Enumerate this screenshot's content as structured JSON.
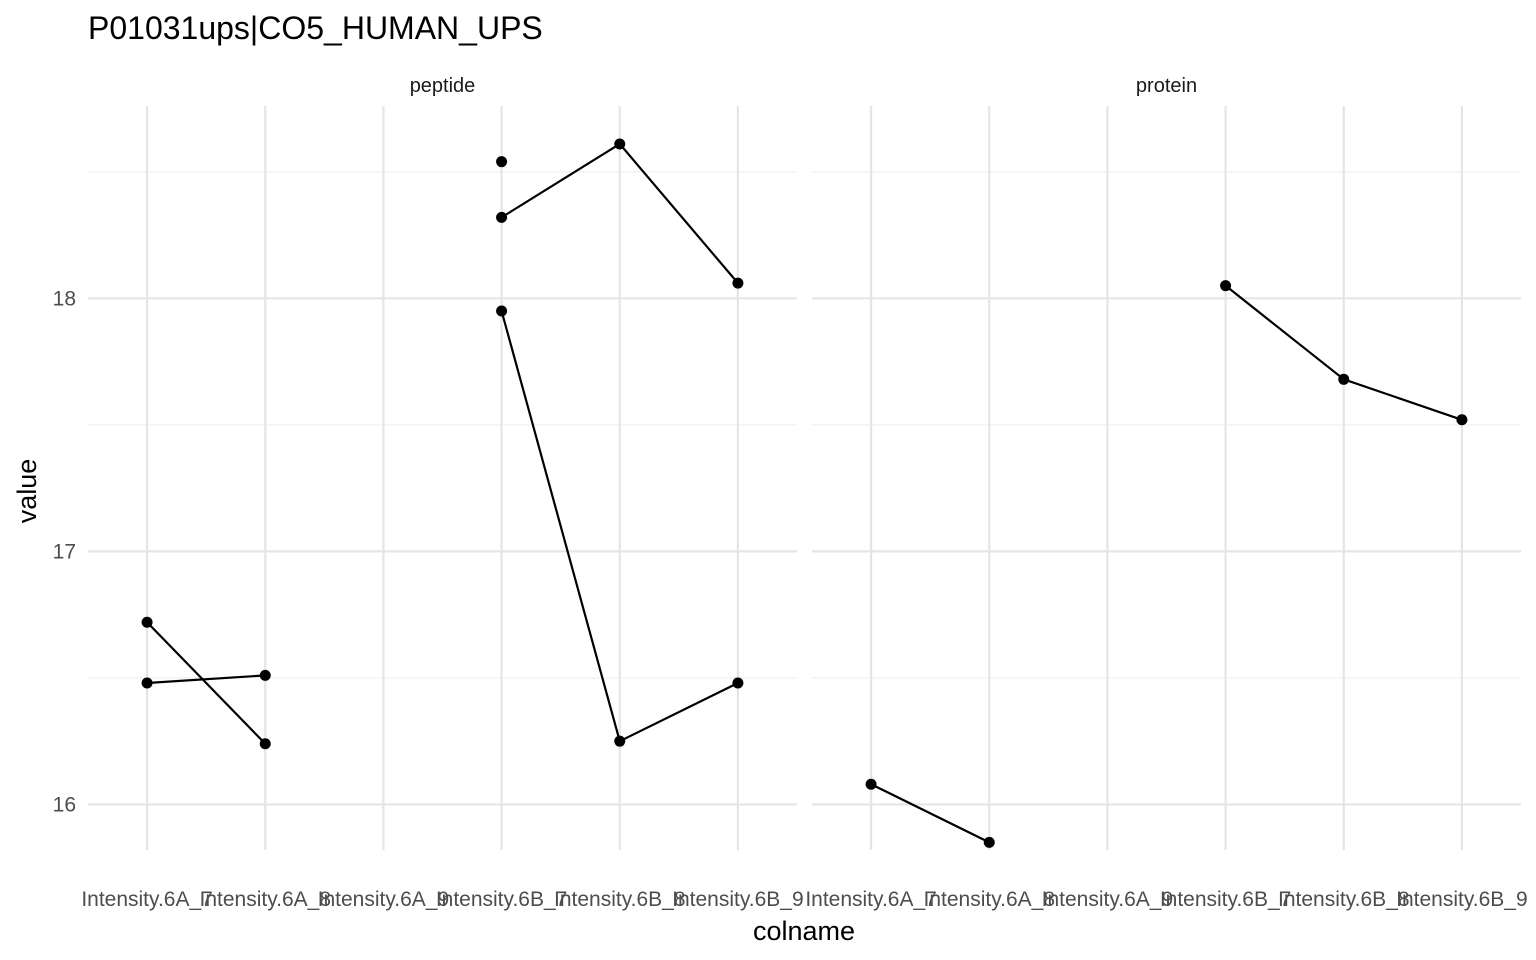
{
  "chart_data": {
    "type": "line",
    "title": "P01031ups|CO5_HUMAN_UPS",
    "xlabel": "colname",
    "ylabel": "value",
    "categories": [
      "Intensity.6A_7",
      "Intensity.6A_8",
      "Intensity.6A_9",
      "Intensity.6B_7",
      "Intensity.6B_8",
      "Intensity.6B_9"
    ],
    "ylim": [
      15.82,
      18.76
    ],
    "y_ticks": [
      "16",
      "17",
      "18"
    ],
    "grid": true,
    "legend": "none",
    "line_color": "#000000",
    "facets": [
      {
        "label": "peptide",
        "series": [
          {
            "values": [
              16.72,
              16.24,
              null,
              null,
              null,
              null
            ]
          },
          {
            "values": [
              16.48,
              16.51,
              null,
              null,
              null,
              null
            ]
          },
          {
            "values": [
              null,
              null,
              null,
              18.32,
              18.61,
              18.06
            ]
          },
          {
            "values": [
              null,
              null,
              null,
              17.95,
              16.25,
              16.48
            ]
          },
          {
            "values": [
              null,
              null,
              null,
              18.54,
              null,
              null
            ]
          }
        ]
      },
      {
        "label": "protein",
        "series": [
          {
            "values": [
              16.08,
              15.85,
              null,
              null,
              null,
              null
            ]
          },
          {
            "values": [
              null,
              null,
              null,
              18.05,
              17.68,
              17.52
            ]
          }
        ]
      }
    ]
  }
}
